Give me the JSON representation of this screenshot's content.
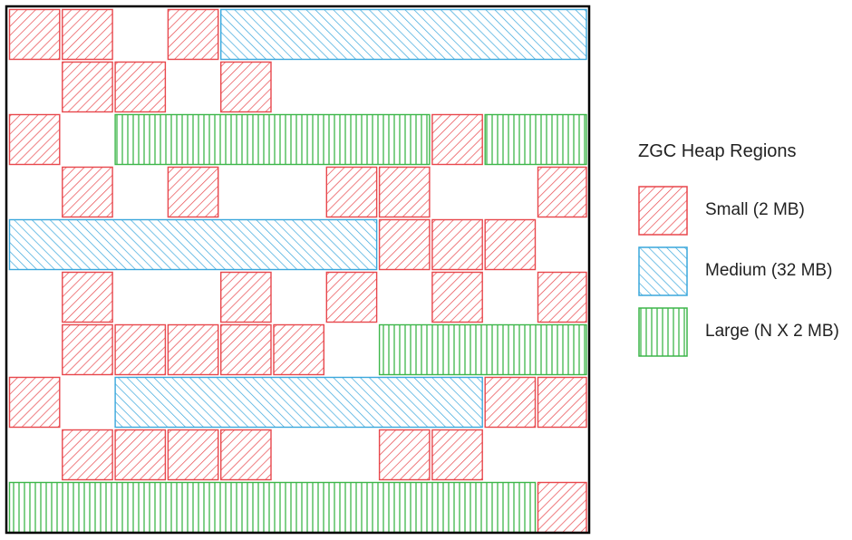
{
  "legend": {
    "title": "ZGC Heap Regions",
    "items": [
      {
        "key": "small",
        "label": "Small (2 MB)",
        "color": "#e8474c",
        "hatch": "diagonal-right"
      },
      {
        "key": "medium",
        "label": "Medium (32 MB)",
        "color": "#3aa7dc",
        "hatch": "diagonal-left"
      },
      {
        "key": "large",
        "label": "Large (N X 2 MB)",
        "color": "#3db64a",
        "hatch": "vertical"
      }
    ]
  },
  "heap": {
    "columns": 11,
    "rows": [
      [
        {
          "type": "small",
          "col": 0,
          "span": 1
        },
        {
          "type": "small",
          "col": 1,
          "span": 1
        },
        {
          "type": "small",
          "col": 3,
          "span": 1
        },
        {
          "type": "medium",
          "col": 4,
          "span": 7
        }
      ],
      [
        {
          "type": "small",
          "col": 1,
          "span": 1
        },
        {
          "type": "small",
          "col": 2,
          "span": 1
        },
        {
          "type": "small",
          "col": 4,
          "span": 1
        }
      ],
      [
        {
          "type": "small",
          "col": 0,
          "span": 1
        },
        {
          "type": "large",
          "col": 2,
          "span": 6
        },
        {
          "type": "small",
          "col": 8,
          "span": 1
        },
        {
          "type": "large",
          "col": 9,
          "span": 2
        }
      ],
      [
        {
          "type": "small",
          "col": 1,
          "span": 1
        },
        {
          "type": "small",
          "col": 3,
          "span": 1
        },
        {
          "type": "small",
          "col": 6,
          "span": 1
        },
        {
          "type": "small",
          "col": 7,
          "span": 1
        },
        {
          "type": "small",
          "col": 10,
          "span": 1
        }
      ],
      [
        {
          "type": "medium",
          "col": 0,
          "span": 7
        },
        {
          "type": "small",
          "col": 7,
          "span": 1
        },
        {
          "type": "small",
          "col": 8,
          "span": 1
        },
        {
          "type": "small",
          "col": 9,
          "span": 1
        }
      ],
      [
        {
          "type": "small",
          "col": 1,
          "span": 1
        },
        {
          "type": "small",
          "col": 4,
          "span": 1
        },
        {
          "type": "small",
          "col": 6,
          "span": 1
        },
        {
          "type": "small",
          "col": 8,
          "span": 1
        },
        {
          "type": "small",
          "col": 10,
          "span": 1
        }
      ],
      [
        {
          "type": "small",
          "col": 1,
          "span": 1
        },
        {
          "type": "small",
          "col": 2,
          "span": 1
        },
        {
          "type": "small",
          "col": 3,
          "span": 1
        },
        {
          "type": "small",
          "col": 4,
          "span": 1
        },
        {
          "type": "small",
          "col": 5,
          "span": 1
        },
        {
          "type": "large",
          "col": 7,
          "span": 4
        }
      ],
      [
        {
          "type": "small",
          "col": 0,
          "span": 1
        },
        {
          "type": "medium",
          "col": 2,
          "span": 7
        },
        {
          "type": "small",
          "col": 9,
          "span": 1
        },
        {
          "type": "small",
          "col": 10,
          "span": 1
        }
      ],
      [
        {
          "type": "small",
          "col": 1,
          "span": 1
        },
        {
          "type": "small",
          "col": 2,
          "span": 1
        },
        {
          "type": "small",
          "col": 3,
          "span": 1
        },
        {
          "type": "small",
          "col": 4,
          "span": 1
        },
        {
          "type": "small",
          "col": 7,
          "span": 1
        },
        {
          "type": "small",
          "col": 8,
          "span": 1
        }
      ],
      [
        {
          "type": "large",
          "col": 0,
          "span": 10
        },
        {
          "type": "small",
          "col": 10,
          "span": 1
        }
      ]
    ]
  }
}
